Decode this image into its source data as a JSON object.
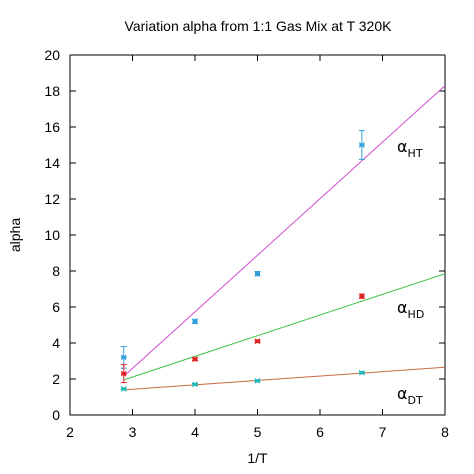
{
  "chart_data": {
    "type": "scatter",
    "title": "Variation alpha from 1:1 Gas Mix at T 320K",
    "xlabel": "1/T",
    "ylabel": "alpha",
    "xlim": [
      2,
      8
    ],
    "ylim": [
      0,
      20
    ],
    "xticks": [
      "2",
      "3",
      "4",
      "5",
      "6",
      "7",
      "8"
    ],
    "yticks": [
      "0",
      "2",
      "4",
      "6",
      "8",
      "10",
      "12",
      "14",
      "16",
      "18",
      "20"
    ],
    "grid": false,
    "series": [
      {
        "name": "αHT",
        "label_main": "α",
        "label_sub": "HT",
        "color": "#2e9fdc",
        "line_color": "#d24fd2",
        "points": [
          {
            "x": 2.86,
            "y": 3.2,
            "err": 0.6
          },
          {
            "x": 4.0,
            "y": 5.2,
            "err": 0.12
          },
          {
            "x": 5.0,
            "y": 7.85,
            "err": 0.12
          },
          {
            "x": 6.67,
            "y": 15.0,
            "err": 0.8
          }
        ],
        "fit": [
          {
            "x": 2.86,
            "y": 2.15
          },
          {
            "x": 8.0,
            "y": 18.3
          }
        ]
      },
      {
        "name": "αHD",
        "label_main": "α",
        "label_sub": "HD",
        "color": "#e02020",
        "line_color": "#3cbf3c",
        "points": [
          {
            "x": 2.86,
            "y": 2.3,
            "err": 0.5
          },
          {
            "x": 4.0,
            "y": 3.1,
            "err": 0.08
          },
          {
            "x": 5.0,
            "y": 4.1,
            "err": 0.08
          },
          {
            "x": 6.67,
            "y": 6.6,
            "err": 0.12
          }
        ],
        "fit": [
          {
            "x": 2.86,
            "y": 1.95
          },
          {
            "x": 8.0,
            "y": 7.85
          }
        ]
      },
      {
        "name": "αDT",
        "label_main": "α",
        "label_sub": "DT",
        "color": "#20b8b8",
        "line_color": "#c86a40",
        "points": [
          {
            "x": 2.86,
            "y": 1.45,
            "err": 0.05
          },
          {
            "x": 4.0,
            "y": 1.7,
            "err": 0.05
          },
          {
            "x": 5.0,
            "y": 1.9,
            "err": 0.05
          },
          {
            "x": 6.67,
            "y": 2.35,
            "err": 0.05
          }
        ],
        "fit": [
          {
            "x": 2.86,
            "y": 1.4
          },
          {
            "x": 8.0,
            "y": 2.65
          }
        ]
      }
    ]
  }
}
